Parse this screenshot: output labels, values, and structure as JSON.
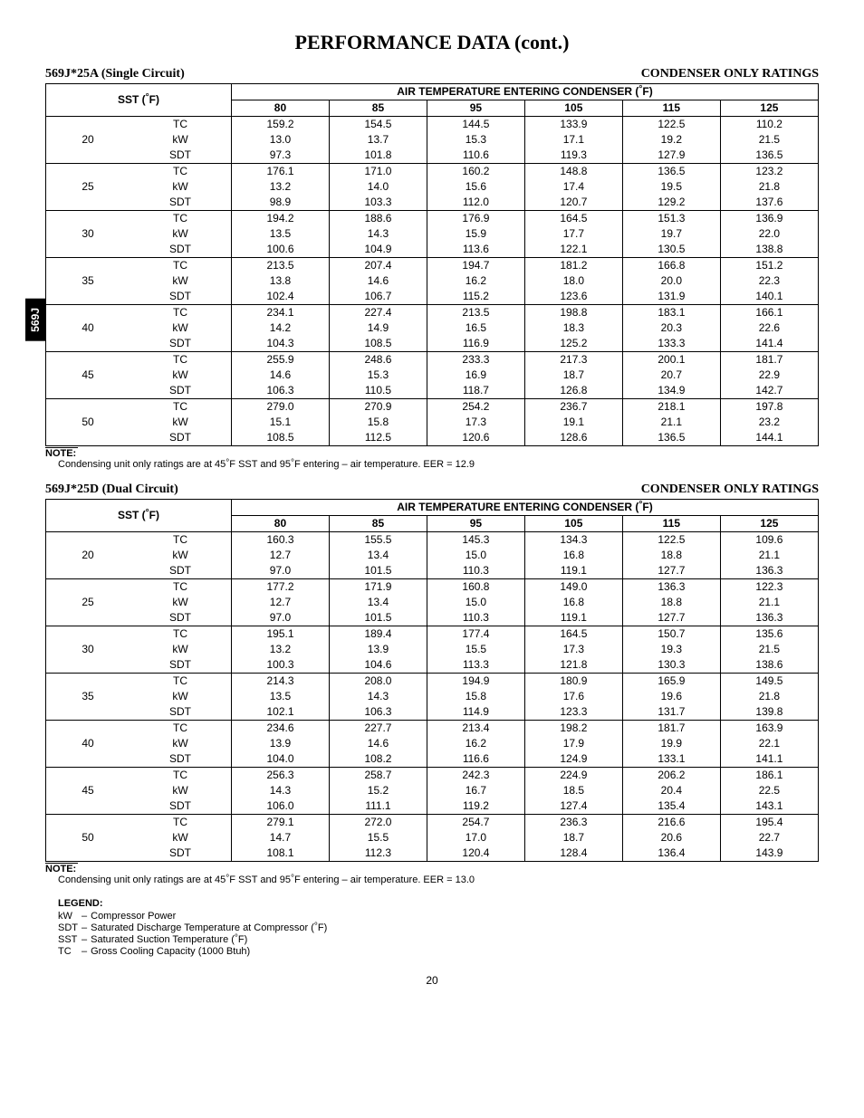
{
  "side_tab": "569J",
  "page_title": "PERFORMANCE DATA (cont.)",
  "page_number": "20",
  "col_temps": [
    "80",
    "85",
    "95",
    "105",
    "115",
    "125"
  ],
  "sst_header_pre": "SST (",
  "sst_header_post": "F)",
  "air_header_pre": "AIR TEMPERATURE ENTERING CONDENSER (",
  "air_header_post": "F)",
  "deg": "°",
  "metrics": [
    "TC",
    "kW",
    "SDT"
  ],
  "tables": [
    {
      "left_heading": "569J*25A (Single Circuit)",
      "right_heading": "CONDENSER ONLY RATINGS",
      "note_label": "NOTE:",
      "note_pre": "Condensing unit only ratings are at 45",
      "note_mid1": "F SST and 95",
      "note_mid2": "F entering – air temperature. EER = 12.9",
      "rows": [
        {
          "sst": "20",
          "TC": [
            "159.2",
            "154.5",
            "144.5",
            "133.9",
            "122.5",
            "110.2"
          ],
          "kW": [
            "13.0",
            "13.7",
            "15.3",
            "17.1",
            "19.2",
            "21.5"
          ],
          "SDT": [
            "97.3",
            "101.8",
            "110.6",
            "119.3",
            "127.9",
            "136.5"
          ]
        },
        {
          "sst": "25",
          "TC": [
            "176.1",
            "171.0",
            "160.2",
            "148.8",
            "136.5",
            "123.2"
          ],
          "kW": [
            "13.2",
            "14.0",
            "15.6",
            "17.4",
            "19.5",
            "21.8"
          ],
          "SDT": [
            "98.9",
            "103.3",
            "112.0",
            "120.7",
            "129.2",
            "137.6"
          ]
        },
        {
          "sst": "30",
          "TC": [
            "194.2",
            "188.6",
            "176.9",
            "164.5",
            "151.3",
            "136.9"
          ],
          "kW": [
            "13.5",
            "14.3",
            "15.9",
            "17.7",
            "19.7",
            "22.0"
          ],
          "SDT": [
            "100.6",
            "104.9",
            "113.6",
            "122.1",
            "130.5",
            "138.8"
          ]
        },
        {
          "sst": "35",
          "TC": [
            "213.5",
            "207.4",
            "194.7",
            "181.2",
            "166.8",
            "151.2"
          ],
          "kW": [
            "13.8",
            "14.6",
            "16.2",
            "18.0",
            "20.0",
            "22.3"
          ],
          "SDT": [
            "102.4",
            "106.7",
            "115.2",
            "123.6",
            "131.9",
            "140.1"
          ]
        },
        {
          "sst": "40",
          "TC": [
            "234.1",
            "227.4",
            "213.5",
            "198.8",
            "183.1",
            "166.1"
          ],
          "kW": [
            "14.2",
            "14.9",
            "16.5",
            "18.3",
            "20.3",
            "22.6"
          ],
          "SDT": [
            "104.3",
            "108.5",
            "116.9",
            "125.2",
            "133.3",
            "141.4"
          ]
        },
        {
          "sst": "45",
          "TC": [
            "255.9",
            "248.6",
            "233.3",
            "217.3",
            "200.1",
            "181.7"
          ],
          "kW": [
            "14.6",
            "15.3",
            "16.9",
            "18.7",
            "20.7",
            "22.9"
          ],
          "SDT": [
            "106.3",
            "110.5",
            "118.7",
            "126.8",
            "134.9",
            "142.7"
          ]
        },
        {
          "sst": "50",
          "TC": [
            "279.0",
            "270.9",
            "254.2",
            "236.7",
            "218.1",
            "197.8"
          ],
          "kW": [
            "15.1",
            "15.8",
            "17.3",
            "19.1",
            "21.1",
            "23.2"
          ],
          "SDT": [
            "108.5",
            "112.5",
            "120.6",
            "128.6",
            "136.5",
            "144.1"
          ]
        }
      ]
    },
    {
      "left_heading": "569J*25D (Dual Circuit)",
      "right_heading": "CONDENSER ONLY RATINGS",
      "note_label": "NOTE:",
      "note_pre": "Condensing unit only ratings are at 45",
      "note_mid1": "F SST and 95",
      "note_mid2": "F entering – air temperature. EER = 13.0",
      "rows": [
        {
          "sst": "20",
          "TC": [
            "160.3",
            "155.5",
            "145.3",
            "134.3",
            "122.5",
            "109.6"
          ],
          "kW": [
            "12.7",
            "13.4",
            "15.0",
            "16.8",
            "18.8",
            "21.1"
          ],
          "SDT": [
            "97.0",
            "101.5",
            "110.3",
            "119.1",
            "127.7",
            "136.3"
          ]
        },
        {
          "sst": "25",
          "TC": [
            "177.2",
            "171.9",
            "160.8",
            "149.0",
            "136.3",
            "122.3"
          ],
          "kW": [
            "12.7",
            "13.4",
            "15.0",
            "16.8",
            "18.8",
            "21.1"
          ],
          "SDT": [
            "97.0",
            "101.5",
            "110.3",
            "119.1",
            "127.7",
            "136.3"
          ]
        },
        {
          "sst": "30",
          "TC": [
            "195.1",
            "189.4",
            "177.4",
            "164.5",
            "150.7",
            "135.6"
          ],
          "kW": [
            "13.2",
            "13.9",
            "15.5",
            "17.3",
            "19.3",
            "21.5"
          ],
          "SDT": [
            "100.3",
            "104.6",
            "113.3",
            "121.8",
            "130.3",
            "138.6"
          ]
        },
        {
          "sst": "35",
          "TC": [
            "214.3",
            "208.0",
            "194.9",
            "180.9",
            "165.9",
            "149.5"
          ],
          "kW": [
            "13.5",
            "14.3",
            "15.8",
            "17.6",
            "19.6",
            "21.8"
          ],
          "SDT": [
            "102.1",
            "106.3",
            "114.9",
            "123.3",
            "131.7",
            "139.8"
          ]
        },
        {
          "sst": "40",
          "TC": [
            "234.6",
            "227.7",
            "213.4",
            "198.2",
            "181.7",
            "163.9"
          ],
          "kW": [
            "13.9",
            "14.6",
            "16.2",
            "17.9",
            "19.9",
            "22.1"
          ],
          "SDT": [
            "104.0",
            "108.2",
            "116.6",
            "124.9",
            "133.1",
            "141.1"
          ]
        },
        {
          "sst": "45",
          "TC": [
            "256.3",
            "258.7",
            "242.3",
            "224.9",
            "206.2",
            "186.1"
          ],
          "kW": [
            "14.3",
            "15.2",
            "16.7",
            "18.5",
            "20.4",
            "22.5"
          ],
          "SDT": [
            "106.0",
            "111.1",
            "119.2",
            "127.4",
            "135.4",
            "143.1"
          ]
        },
        {
          "sst": "50",
          "TC": [
            "279.1",
            "272.0",
            "254.7",
            "236.3",
            "216.6",
            "195.4"
          ],
          "kW": [
            "14.7",
            "15.5",
            "17.0",
            "18.7",
            "20.6",
            "22.7"
          ],
          "SDT": [
            "108.1",
            "112.3",
            "120.4",
            "128.4",
            "136.4",
            "143.9"
          ]
        }
      ]
    }
  ],
  "legend_title": "LEGEND:",
  "legend": [
    {
      "k": "kW",
      "d": "–",
      "v": "Compressor Power"
    },
    {
      "k": "SDT",
      "d": "–",
      "v": "Saturated Discharge Temperature at Compressor (°F)"
    },
    {
      "k": "SST",
      "d": "–",
      "v": "Saturated Suction Temperature (°F)"
    },
    {
      "k": "TC",
      "d": "–",
      "v": "Gross Cooling Capacity (1000 Btuh)"
    }
  ]
}
